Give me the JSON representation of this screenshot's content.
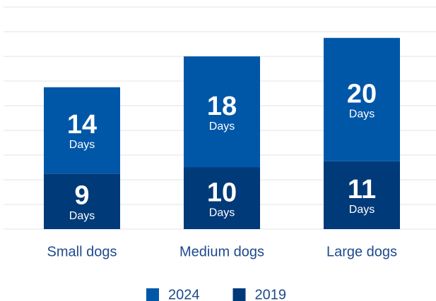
{
  "chart_data": {
    "type": "stacked_bar",
    "categories": [
      "Small dogs",
      "Medium dogs",
      "Large dogs"
    ],
    "unit_label": "Days",
    "series": [
      {
        "name": "2019",
        "color": "#003a78",
        "values": [
          9,
          10,
          11
        ]
      },
      {
        "name": "2024",
        "color": "#0057a8",
        "values": [
          14,
          18,
          20
        ]
      }
    ],
    "legend_order": [
      1,
      0
    ],
    "ylim": [
      0,
      36
    ],
    "yticks": [
      0,
      4,
      8,
      12,
      16,
      20,
      24,
      28,
      32,
      36
    ],
    "grid": true
  }
}
